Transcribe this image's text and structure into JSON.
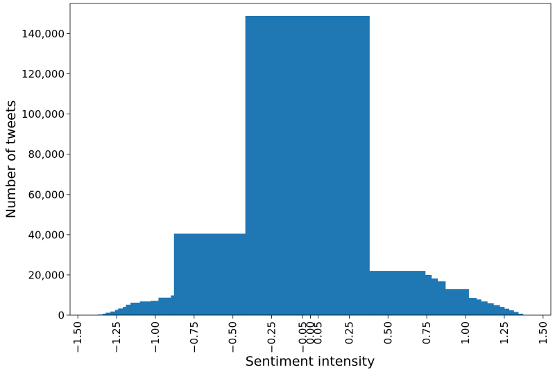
{
  "chart_data": {
    "type": "bar",
    "xlabel": "Sentiment intensity",
    "ylabel": "Number of tweets",
    "xlim": [
      -1.55,
      1.55
    ],
    "ylim": [
      0,
      155000
    ],
    "grid": false,
    "xticks": [
      {
        "value": -1.5,
        "label": "−1.50"
      },
      {
        "value": -1.25,
        "label": "−1.25"
      },
      {
        "value": -1.0,
        "label": "−1.00"
      },
      {
        "value": -0.75,
        "label": "−0.75"
      },
      {
        "value": -0.5,
        "label": "−0.50"
      },
      {
        "value": -0.25,
        "label": "−0.25"
      },
      {
        "value": -0.05,
        "label": "−0.05"
      },
      {
        "value": 0.0,
        "label": "0.00"
      },
      {
        "value": 0.05,
        "label": "0.05"
      },
      {
        "value": 0.25,
        "label": "0.25"
      },
      {
        "value": 0.5,
        "label": "0.50"
      },
      {
        "value": 0.75,
        "label": "0.75"
      },
      {
        "value": 1.0,
        "label": "1.00"
      },
      {
        "value": 1.25,
        "label": "1.25"
      },
      {
        "value": 1.5,
        "label": "1.50"
      }
    ],
    "yticks": [
      {
        "value": 0,
        "label": "0"
      },
      {
        "value": 20000,
        "label": "20,000"
      },
      {
        "value": 40000,
        "label": "40,000"
      },
      {
        "value": 60000,
        "label": "60,000"
      },
      {
        "value": 80000,
        "label": "80,000"
      },
      {
        "value": 100000,
        "label": "100,000"
      },
      {
        "value": 120000,
        "label": "120,000"
      },
      {
        "value": 140000,
        "label": "140,000"
      }
    ],
    "bar_color": "#1f77b4",
    "bins": [
      {
        "x0": -1.37,
        "x1": -1.34,
        "value": 300
      },
      {
        "x0": -1.34,
        "x1": -1.32,
        "value": 700
      },
      {
        "x0": -1.32,
        "x1": -1.29,
        "value": 1200
      },
      {
        "x0": -1.29,
        "x1": -1.26,
        "value": 1800
      },
      {
        "x0": -1.26,
        "x1": -1.24,
        "value": 2600
      },
      {
        "x0": -1.24,
        "x1": -1.21,
        "value": 3300
      },
      {
        "x0": -1.21,
        "x1": -1.19,
        "value": 4100
      },
      {
        "x0": -1.19,
        "x1": -1.16,
        "value": 5200
      },
      {
        "x0": -1.16,
        "x1": -1.1,
        "value": 6200
      },
      {
        "x0": -1.1,
        "x1": -1.03,
        "value": 6800
      },
      {
        "x0": -1.03,
        "x1": -0.98,
        "value": 7100
      },
      {
        "x0": -0.98,
        "x1": -0.9,
        "value": 8700
      },
      {
        "x0": -0.9,
        "x1": -0.88,
        "value": 9800
      },
      {
        "x0": -0.88,
        "x1": -0.42,
        "value": 40500
      },
      {
        "x0": -0.42,
        "x1": 0.38,
        "value": 148800
      },
      {
        "x0": 0.38,
        "x1": 0.74,
        "value": 22000
      },
      {
        "x0": 0.74,
        "x1": 0.78,
        "value": 20000
      },
      {
        "x0": 0.78,
        "x1": 0.82,
        "value": 18200
      },
      {
        "x0": 0.82,
        "x1": 0.87,
        "value": 16800
      },
      {
        "x0": 0.87,
        "x1": 1.02,
        "value": 13000
      },
      {
        "x0": 1.02,
        "x1": 1.07,
        "value": 8600
      },
      {
        "x0": 1.07,
        "x1": 1.1,
        "value": 7800
      },
      {
        "x0": 1.1,
        "x1": 1.14,
        "value": 6800
      },
      {
        "x0": 1.14,
        "x1": 1.18,
        "value": 5900
      },
      {
        "x0": 1.18,
        "x1": 1.22,
        "value": 5000
      },
      {
        "x0": 1.22,
        "x1": 1.25,
        "value": 4100
      },
      {
        "x0": 1.25,
        "x1": 1.28,
        "value": 3200
      },
      {
        "x0": 1.28,
        "x1": 1.31,
        "value": 2400
      },
      {
        "x0": 1.31,
        "x1": 1.34,
        "value": 1600
      },
      {
        "x0": 1.34,
        "x1": 1.37,
        "value": 700
      }
    ]
  }
}
